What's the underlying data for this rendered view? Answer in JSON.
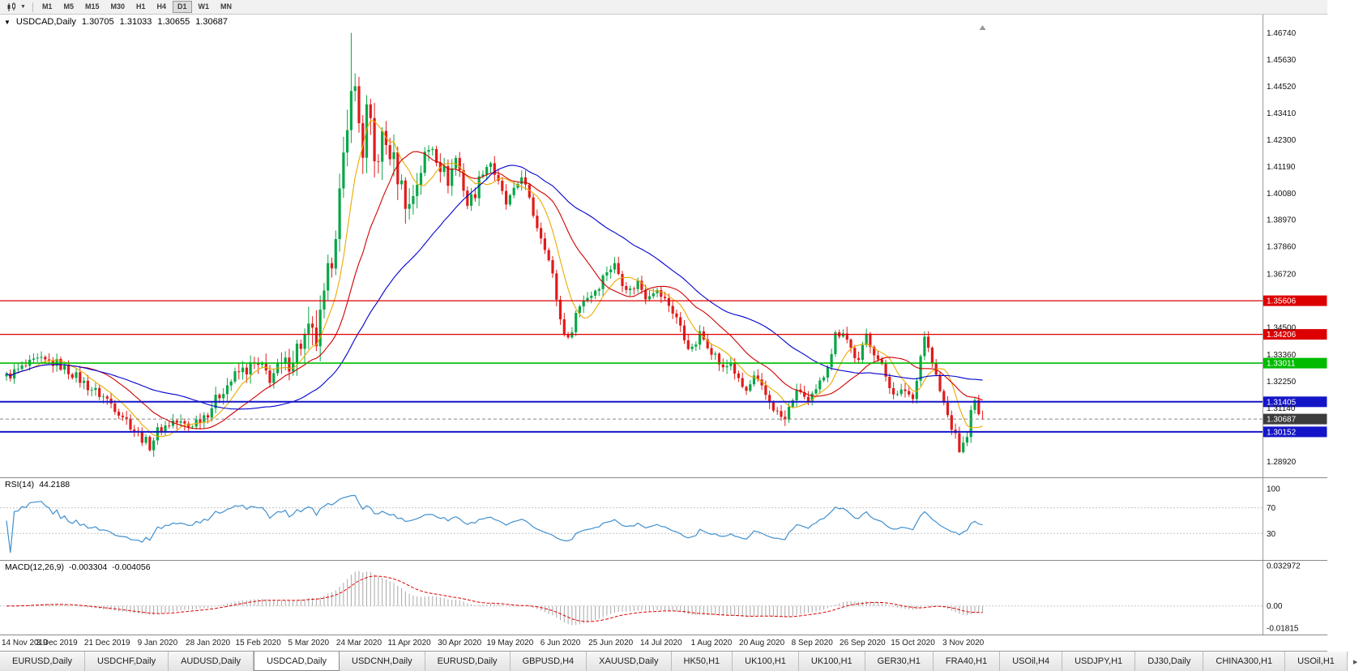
{
  "toolbar": {
    "timeframes": [
      "M1",
      "M5",
      "M15",
      "M30",
      "H1",
      "H4",
      "D1",
      "W1",
      "MN"
    ],
    "active_timeframe": "D1"
  },
  "chart": {
    "symbol": "USDCAD,Daily",
    "open": "1.30705",
    "high": "1.31033",
    "low": "1.30655",
    "close": "1.30687",
    "axis_ticks": [
      "1.46740",
      "1.45630",
      "1.44520",
      "1.43410",
      "1.42300",
      "1.41190",
      "1.40080",
      "1.38970",
      "1.37860",
      "1.36720",
      "1.34500",
      "1.33360",
      "1.32250",
      "1.31140",
      "1.28920"
    ],
    "hlines": [
      {
        "value": 1.35606,
        "label": "1.35606",
        "color": "#dd0000",
        "width": 1.2
      },
      {
        "value": 1.34206,
        "label": "1.34206",
        "color": "#dd0000",
        "width": 1.2
      },
      {
        "value": 1.33011,
        "label": "1.33011",
        "color": "#00bb00",
        "width": 1.6
      },
      {
        "value": 1.31405,
        "label": "1.31405",
        "color": "#1515c8",
        "width": 2
      },
      {
        "value": 1.30152,
        "label": "1.30152",
        "color": "#1515c8",
        "width": 2
      }
    ],
    "price_marker": {
      "value": 1.30687,
      "label": "1.30687",
      "color": "#3c3c3c"
    }
  },
  "rsi": {
    "name": "RSI(14)",
    "value": "44.2188",
    "color": "#4090cf",
    "levels": [
      70,
      30
    ],
    "axis_labels": [
      {
        "value": 100,
        "label": "100"
      },
      {
        "value": 70,
        "label": "70"
      },
      {
        "value": 30,
        "label": "30"
      }
    ]
  },
  "macd": {
    "name": "MACD(12,26,9)",
    "value_main": "-0.003304",
    "value_signal": "-0.004056",
    "hist_color": "#a8a8a8",
    "signal_color": "#e00000",
    "axis_labels": [
      {
        "value": 0.032972,
        "label": "0.032972"
      },
      {
        "value": 0,
        "label": "0.00"
      },
      {
        "value": -0.01815,
        "label": "-0.01815"
      }
    ]
  },
  "date_axis": [
    "14 Nov 2019",
    "3 Dec 2019",
    "21 Dec 2019",
    "9 Jan 2020",
    "28 Jan 2020",
    "15 Feb 2020",
    "5 Mar 2020",
    "24 Mar 2020",
    "11 Apr 2020",
    "30 Apr 2020",
    "19 May 2020",
    "6 Jun 2020",
    "25 Jun 2020",
    "14 Jul 2020",
    "1 Aug 2020",
    "20 Aug 2020",
    "8 Sep 2020",
    "26 Sep 2020",
    "15 Oct 2020",
    "3 Nov 2020"
  ],
  "tabs": [
    {
      "label": "EURUSD,Daily",
      "active": false
    },
    {
      "label": "USDCHF,Daily",
      "active": false
    },
    {
      "label": "AUDUSD,Daily",
      "active": false
    },
    {
      "label": "USDCAD,Daily",
      "active": true
    },
    {
      "label": "USDCNH,Daily",
      "active": false
    },
    {
      "label": "EURUSD,Daily",
      "active": false
    },
    {
      "label": "GBPUSD,H4",
      "active": false
    },
    {
      "label": "XAUUSD,Daily",
      "active": false
    },
    {
      "label": "HK50,H1",
      "active": false
    },
    {
      "label": "UK100,H1",
      "active": false
    },
    {
      "label": "UK100,H1",
      "active": false
    },
    {
      "label": "GER30,H1",
      "active": false
    },
    {
      "label": "FRA40,H1",
      "active": false
    },
    {
      "label": "USOil,H4",
      "active": false
    },
    {
      "label": "USDJPY,H1",
      "active": false
    },
    {
      "label": "DJ30,Daily",
      "active": false
    },
    {
      "label": "CHINA300,H1",
      "active": false
    },
    {
      "label": "USOil,H1",
      "active": false
    }
  ],
  "chart_data": {
    "type": "candlestick",
    "symbol": "USDCAD",
    "timeframe": "Daily",
    "num_candles": 253,
    "x0": 8,
    "step": 4.78,
    "labels_per_interval": 13,
    "y_range": [
      1.286,
      1.473
    ],
    "ohlc_last": {
      "open": 1.30705,
      "high": 1.31033,
      "low": 1.30655,
      "close": 1.30687
    },
    "extremes": {
      "spike_high": {
        "index": 89,
        "value": 1.4674
      },
      "trough_low": {
        "index": 246,
        "value": 1.2928
      }
    },
    "close_keyframes": [
      [
        0,
        1.3245
      ],
      [
        4,
        1.328
      ],
      [
        8,
        1.331
      ],
      [
        13,
        1.33
      ],
      [
        17,
        1.3258
      ],
      [
        21,
        1.3205
      ],
      [
        26,
        1.315
      ],
      [
        30,
        1.3085
      ],
      [
        34,
        1.3005
      ],
      [
        37,
        1.2958
      ],
      [
        39,
        1.3018
      ],
      [
        43,
        1.306
      ],
      [
        47,
        1.3038
      ],
      [
        52,
        1.3098
      ],
      [
        56,
        1.3195
      ],
      [
        60,
        1.3262
      ],
      [
        64,
        1.329
      ],
      [
        68,
        1.3248
      ],
      [
        72,
        1.3288
      ],
      [
        76,
        1.3385
      ],
      [
        78,
        1.342
      ],
      [
        80,
        1.3392
      ],
      [
        82,
        1.3555
      ],
      [
        84,
        1.3755
      ],
      [
        86,
        1.3995
      ],
      [
        88,
        1.4245
      ],
      [
        89,
        1.4495
      ],
      [
        90,
        1.442
      ],
      [
        91,
        1.43
      ],
      [
        92,
        1.4185
      ],
      [
        93,
        1.4345
      ],
      [
        94,
        1.4262
      ],
      [
        95,
        1.4125
      ],
      [
        97,
        1.4228
      ],
      [
        99,
        1.418
      ],
      [
        101,
        1.4085
      ],
      [
        103,
        1.3985
      ],
      [
        104,
        1.3952
      ],
      [
        106,
        1.4058
      ],
      [
        108,
        1.4158
      ],
      [
        110,
        1.4208
      ],
      [
        112,
        1.4125
      ],
      [
        114,
        1.4062
      ],
      [
        116,
        1.4155
      ],
      [
        117,
        1.4102
      ],
      [
        119,
        1.3962
      ],
      [
        121,
        1.4012
      ],
      [
        123,
        1.4108
      ],
      [
        125,
        1.4138
      ],
      [
        127,
        1.4042
      ],
      [
        129,
        1.3962
      ],
      [
        131,
        1.4008
      ],
      [
        133,
        1.4088
      ],
      [
        135,
        1.3972
      ],
      [
        137,
        1.3872
      ],
      [
        139,
        1.3792
      ],
      [
        141,
        1.3662
      ],
      [
        143,
        1.3482
      ],
      [
        145,
        1.3392
      ],
      [
        147,
        1.3508
      ],
      [
        149,
        1.3568
      ],
      [
        151,
        1.3588
      ],
      [
        153,
        1.3628
      ],
      [
        155,
        1.3688
      ],
      [
        157,
        1.3708
      ],
      [
        159,
        1.3642
      ],
      [
        161,
        1.3602
      ],
      [
        163,
        1.3638
      ],
      [
        165,
        1.3582
      ],
      [
        167,
        1.3608
      ],
      [
        169,
        1.3582
      ],
      [
        171,
        1.3542
      ],
      [
        173,
        1.3492
      ],
      [
        175,
        1.3402
      ],
      [
        177,
        1.3352
      ],
      [
        179,
        1.3418
      ],
      [
        181,
        1.3382
      ],
      [
        183,
        1.3332
      ],
      [
        185,
        1.3272
      ],
      [
        187,
        1.3308
      ],
      [
        189,
        1.3222
      ],
      [
        191,
        1.3182
      ],
      [
        193,
        1.3238
      ],
      [
        195,
        1.3192
      ],
      [
        197,
        1.3142
      ],
      [
        199,
        1.3092
      ],
      [
        201,
        1.3062
      ],
      [
        203,
        1.3158
      ],
      [
        205,
        1.3188
      ],
      [
        207,
        1.3132
      ],
      [
        209,
        1.318
      ],
      [
        211,
        1.3252
      ],
      [
        213,
        1.3352
      ],
      [
        214,
        1.3418
      ],
      [
        216,
        1.3438
      ],
      [
        218,
        1.3362
      ],
      [
        220,
        1.3302
      ],
      [
        222,
        1.3418
      ],
      [
        224,
        1.3352
      ],
      [
        226,
        1.3282
      ],
      [
        228,
        1.3212
      ],
      [
        230,
        1.3162
      ],
      [
        232,
        1.3192
      ],
      [
        234,
        1.3152
      ],
      [
        235,
        1.3248
      ],
      [
        237,
        1.3418
      ],
      [
        239,
        1.3302
      ],
      [
        241,
        1.3182
      ],
      [
        243,
        1.3082
      ],
      [
        245,
        1.2992
      ],
      [
        246,
        1.2942
      ],
      [
        247,
        1.2958
      ],
      [
        248,
        1.3012
      ],
      [
        249,
        1.3092
      ],
      [
        250,
        1.3138
      ],
      [
        251,
        1.3092
      ],
      [
        252,
        1.30687
      ]
    ],
    "candle_colors": {
      "up": "#0aa648",
      "down": "#e01b1b"
    },
    "moving_averages": [
      {
        "period": 8,
        "color": "#eda900"
      },
      {
        "period": 20,
        "color": "#d10000"
      },
      {
        "period": 45,
        "color": "#0000cd"
      }
    ],
    "rsi": {
      "period": 14,
      "range": [
        -10,
        115
      ]
    },
    "macd": {
      "fast": 12,
      "slow": 26,
      "signal": 9,
      "range": [
        -0.0215,
        0.035
      ]
    }
  }
}
